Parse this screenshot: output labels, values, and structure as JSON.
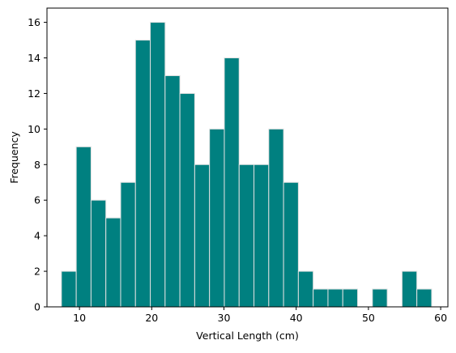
{
  "chart_data": {
    "type": "bar",
    "xlabel": "Vertical Length (cm)",
    "ylabel": "Frequency",
    "xlim": [
      5.5,
      61.0
    ],
    "ylim": [
      0,
      16.8
    ],
    "grid": false,
    "xticks": [
      10,
      20,
      30,
      40,
      50,
      60
    ],
    "yticks": [
      0,
      2,
      4,
      6,
      8,
      10,
      12,
      14,
      16
    ],
    "bin_edges": [
      7.5,
      9.55,
      11.6,
      13.65,
      15.7,
      17.75,
      19.8,
      21.85,
      23.9,
      25.95,
      28.0,
      30.05,
      32.1,
      34.15,
      36.2,
      38.25,
      40.3,
      42.35,
      44.4,
      46.45,
      48.5,
      50.55,
      52.6,
      54.65,
      56.7,
      58.75
    ],
    "values": [
      2,
      9,
      6,
      5,
      7,
      15,
      16,
      13,
      12,
      8,
      10,
      14,
      8,
      8,
      10,
      7,
      2,
      1,
      1,
      1,
      0,
      1,
      0,
      2,
      1
    ],
    "bar_color": "#008080",
    "edge_color": "#e0e0e0"
  }
}
